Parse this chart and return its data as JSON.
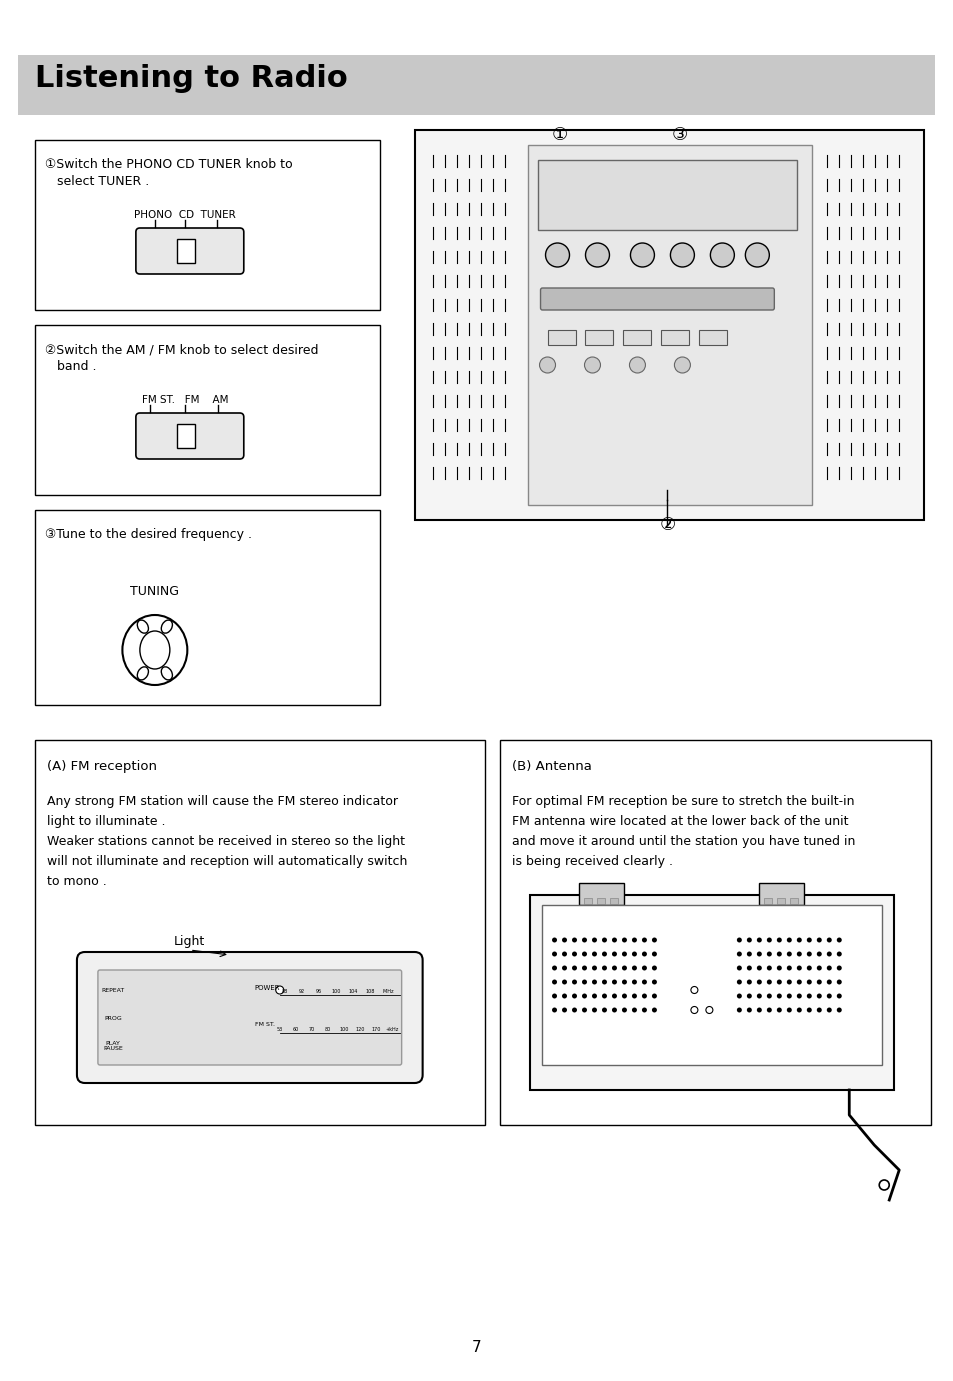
{
  "title": "Listening to Radio",
  "title_bg": "#c8c8c8",
  "page_num": "7",
  "bg_color": "#ffffff",
  "box1_text1": "①Switch the PHONO CD TUNER knob to",
  "box1_text2": "   select TUNER .",
  "box1_label": "PHONO  CD  TUNER",
  "box2_text1": "②Switch the AM / FM knob to select desired",
  "box2_text2": "   band .",
  "box2_label": "FM ST.   FM    AM",
  "box3_text1": "③Tune to the desired frequency .",
  "box3_label": "TUNING",
  "boxA_title": "(A) FM reception",
  "boxA_line1": "Any strong FM station will cause the FM stereo indicator",
  "boxA_line2": "light to illuminate .",
  "boxA_line3": "Weaker stations cannot be received in stereo so the light",
  "boxA_line4": "will not illuminate and reception will automatically switch",
  "boxA_line5": "to mono .",
  "boxA_sublabel": "Light",
  "boxB_title": "(B) Antenna",
  "boxB_line1": "For optimal FM reception be sure to stretch the built-in",
  "boxB_line2": "FM antenna wire located at the lower back of the unit",
  "boxB_line3": "and move it around until the station you have tuned in",
  "boxB_line4": "is being received clearly ."
}
